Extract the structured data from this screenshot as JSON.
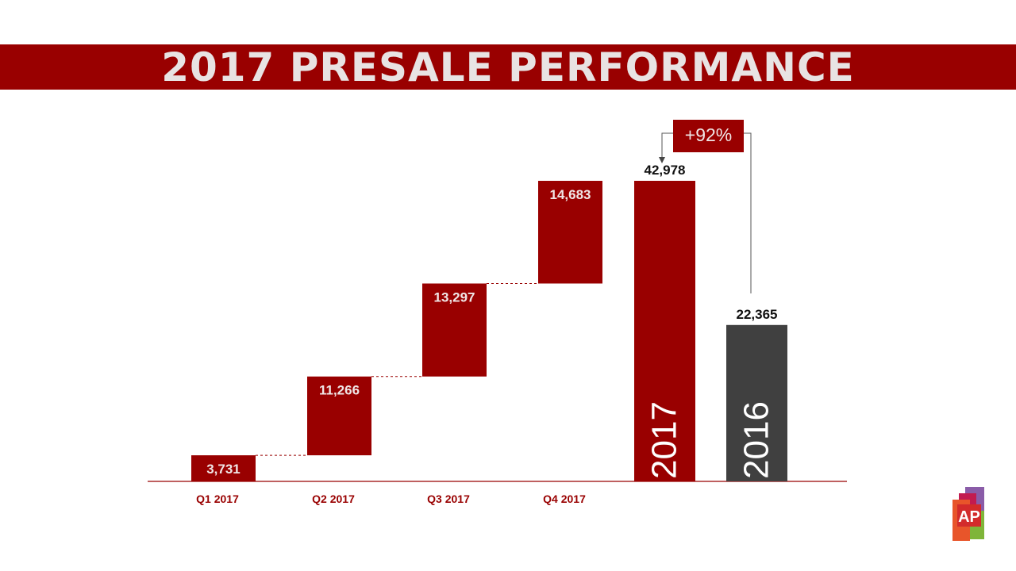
{
  "title": "2017 PRESALE PERFORMANCE",
  "chart_data": {
    "type": "bar",
    "subtype": "waterfall",
    "categories": [
      "Q1 2017",
      "Q2 2017",
      "Q3 2017",
      "Q4 2017"
    ],
    "steps": [
      3731,
      11266,
      13297,
      14683
    ],
    "step_labels": [
      "3,731",
      "11,266",
      "13,297",
      "14,683"
    ],
    "totals": [
      {
        "year": "2017",
        "value": 42978,
        "label": "42,978"
      },
      {
        "year": "2016",
        "value": 22365,
        "label": "22,365"
      }
    ],
    "growth_label": "+92%",
    "ylim": [
      0,
      42978
    ],
    "grid": false,
    "legend": "none"
  },
  "colors": {
    "primary": "#990000",
    "total_2016": "#404040",
    "label_light": "#f0e6e6",
    "axis_label": "#990000"
  },
  "logo": {
    "text": "AP"
  }
}
